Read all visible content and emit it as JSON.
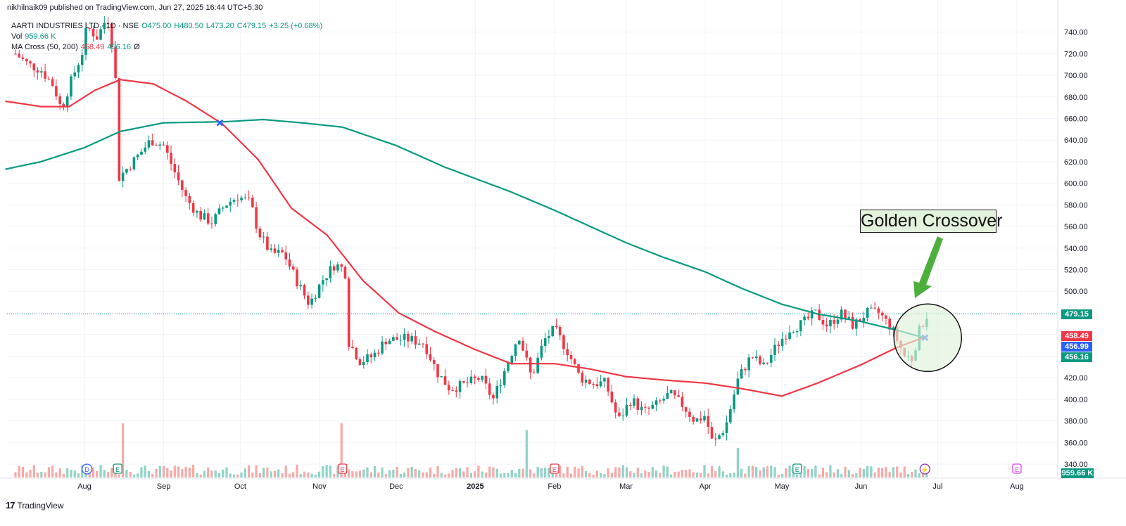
{
  "header": {
    "text": "nikhilnaik09 published on TradingView.com, Jun 27, 2025 16:44 UTC+5:30"
  },
  "legend": {
    "symbol": "AARTI INDUSTRIES LTD · 1D · NSE",
    "open": "O475.00",
    "high": "H480.50",
    "low": "L473.20",
    "close": "C479.15",
    "change": "+3.25 (+0.68%)",
    "vol_label": "Vol",
    "vol_value": "959.66 K",
    "ma_label": "MA Cross (50, 200)",
    "ma_fast": "458.49",
    "ma_slow": "456.16",
    "ma_extra": "Ø"
  },
  "annotation": {
    "label": "Golden Crossover"
  },
  "price_tags": {
    "last": "479.15",
    "ma50": "458.49",
    "crossover": "456.99",
    "ma200": "456.16",
    "volume": "959.66 K"
  },
  "footer": {
    "brand": "TradingView"
  },
  "colors": {
    "up": "#089981",
    "down": "#f23645",
    "ma50": "#f23645",
    "ma200": "#089981",
    "vol_up": "#8fd3c7",
    "vol_down": "#f7a9a7",
    "grid": "#f0f3fa",
    "cross": "#2962ff",
    "arrow": "#4caf3c"
  },
  "chart_data": {
    "type": "candlestick",
    "title": "AARTI INDUSTRIES LTD · 1D · NSE",
    "y_ticks": [
      340,
      360,
      380,
      400,
      420,
      440,
      460,
      480,
      500,
      520,
      540,
      560,
      580,
      600,
      620,
      640,
      660,
      680,
      700,
      720,
      740
    ],
    "ylim": [
      336,
      748
    ],
    "x_ticks": [
      {
        "label": "Aug",
        "date": "2024-08-01"
      },
      {
        "label": "Sep",
        "date": "2024-09-01"
      },
      {
        "label": "Oct",
        "date": "2024-10-01"
      },
      {
        "label": "Nov",
        "date": "2024-11-01"
      },
      {
        "label": "Dec",
        "date": "2024-12-01"
      },
      {
        "label": "2025",
        "date": "2025-01-01"
      },
      {
        "label": "Feb",
        "date": "2025-02-01"
      },
      {
        "label": "Mar",
        "date": "2025-03-01"
      },
      {
        "label": "Apr",
        "date": "2025-04-01"
      },
      {
        "label": "May",
        "date": "2025-05-01"
      },
      {
        "label": "Jun",
        "date": "2025-06-01"
      },
      {
        "label": "Jul",
        "date": "2025-07-01"
      },
      {
        "label": "Aug",
        "date": "2025-08-01"
      }
    ],
    "price_path": [
      [
        "2024-07-05",
        720
      ],
      [
        "2024-07-10",
        710
      ],
      [
        "2024-07-15",
        705
      ],
      [
        "2024-07-20",
        690
      ],
      [
        "2024-07-23",
        668
      ],
      [
        "2024-07-26",
        690
      ],
      [
        "2024-07-31",
        720
      ],
      [
        "2024-08-02",
        745
      ],
      [
        "2024-08-06",
        735
      ],
      [
        "2024-08-10",
        755
      ],
      [
        "2024-08-13",
        712
      ],
      [
        "2024-08-14",
        604
      ],
      [
        "2024-08-20",
        620
      ],
      [
        "2024-08-27",
        640
      ],
      [
        "2024-09-01",
        635
      ],
      [
        "2024-09-05",
        612
      ],
      [
        "2024-09-10",
        585
      ],
      [
        "2024-09-15",
        570
      ],
      [
        "2024-09-20",
        564
      ],
      [
        "2024-09-25",
        580
      ],
      [
        "2024-09-30",
        588
      ],
      [
        "2024-10-05",
        582
      ],
      [
        "2024-10-08",
        555
      ],
      [
        "2024-10-13",
        535
      ],
      [
        "2024-10-18",
        535
      ],
      [
        "2024-10-23",
        510
      ],
      [
        "2024-10-28",
        488
      ],
      [
        "2024-11-02",
        510
      ],
      [
        "2024-11-07",
        525
      ],
      [
        "2024-11-11",
        520
      ],
      [
        "2024-11-12",
        455
      ],
      [
        "2024-11-17",
        435
      ],
      [
        "2024-11-22",
        440
      ],
      [
        "2024-11-27",
        455
      ],
      [
        "2024-12-05",
        456
      ],
      [
        "2024-12-12",
        452
      ],
      [
        "2024-12-17",
        425
      ],
      [
        "2024-12-22",
        410
      ],
      [
        "2024-12-27",
        413
      ],
      [
        "2025-01-03",
        420
      ],
      [
        "2025-01-08",
        400
      ],
      [
        "2025-01-13",
        430
      ],
      [
        "2025-01-18",
        460
      ],
      [
        "2025-01-23",
        420
      ],
      [
        "2025-01-28",
        455
      ],
      [
        "2025-02-01",
        465
      ],
      [
        "2025-02-06",
        445
      ],
      [
        "2025-02-11",
        420
      ],
      [
        "2025-02-16",
        415
      ],
      [
        "2025-02-21",
        415
      ],
      [
        "2025-02-26",
        380
      ],
      [
        "2025-03-03",
        400
      ],
      [
        "2025-03-08",
        388
      ],
      [
        "2025-03-13",
        395
      ],
      [
        "2025-03-18",
        405
      ],
      [
        "2025-03-23",
        395
      ],
      [
        "2025-03-28",
        380
      ],
      [
        "2025-04-01",
        385
      ],
      [
        "2025-04-04",
        358
      ],
      [
        "2025-04-09",
        375
      ],
      [
        "2025-04-14",
        420
      ],
      [
        "2025-04-19",
        440
      ],
      [
        "2025-04-24",
        430
      ],
      [
        "2025-04-29",
        450
      ],
      [
        "2025-05-04",
        465
      ],
      [
        "2025-05-09",
        470
      ],
      [
        "2025-05-14",
        480
      ],
      [
        "2025-05-19",
        468
      ],
      [
        "2025-05-24",
        480
      ],
      [
        "2025-05-29",
        468
      ],
      [
        "2025-06-03",
        480
      ],
      [
        "2025-06-08",
        480
      ],
      [
        "2025-06-13",
        466
      ],
      [
        "2025-06-18",
        440
      ],
      [
        "2025-06-21",
        438
      ],
      [
        "2025-06-24",
        465
      ],
      [
        "2025-06-27",
        479
      ]
    ],
    "series": [
      {
        "name": "MA 50",
        "values": [
          [
            "2024-07-01",
            676
          ],
          [
            "2024-07-15",
            671
          ],
          [
            "2024-07-26",
            671
          ],
          [
            "2024-08-05",
            686
          ],
          [
            "2024-08-15",
            696
          ],
          [
            "2024-08-28",
            692
          ],
          [
            "2024-09-10",
            676
          ],
          [
            "2024-09-24",
            655
          ],
          [
            "2024-10-08",
            622
          ],
          [
            "2024-10-21",
            577
          ],
          [
            "2024-11-04",
            552
          ],
          [
            "2024-11-18",
            510
          ],
          [
            "2024-12-02",
            480
          ],
          [
            "2024-12-16",
            463
          ],
          [
            "2025-01-01",
            446
          ],
          [
            "2025-01-15",
            433
          ],
          [
            "2025-02-01",
            433
          ],
          [
            "2025-02-15",
            428
          ],
          [
            "2025-03-01",
            421
          ],
          [
            "2025-03-15",
            418
          ],
          [
            "2025-04-01",
            415
          ],
          [
            "2025-04-15",
            410
          ],
          [
            "2025-05-01",
            403
          ],
          [
            "2025-05-15",
            415
          ],
          [
            "2025-06-01",
            432
          ],
          [
            "2025-06-15",
            448
          ],
          [
            "2025-06-27",
            458.49
          ]
        ]
      },
      {
        "name": "MA 200",
        "values": [
          [
            "2024-07-01",
            613
          ],
          [
            "2024-07-15",
            620
          ],
          [
            "2024-08-01",
            633
          ],
          [
            "2024-08-15",
            648
          ],
          [
            "2024-09-01",
            656
          ],
          [
            "2024-09-25",
            657
          ],
          [
            "2024-10-10",
            659
          ],
          [
            "2024-10-25",
            656
          ],
          [
            "2024-11-10",
            652
          ],
          [
            "2024-12-01",
            635
          ],
          [
            "2024-12-20",
            615
          ],
          [
            "2025-01-15",
            592
          ],
          [
            "2025-02-01",
            575
          ],
          [
            "2025-02-15",
            560
          ],
          [
            "2025-03-01",
            545
          ],
          [
            "2025-03-15",
            532
          ],
          [
            "2025-04-01",
            518
          ],
          [
            "2025-04-15",
            503
          ],
          [
            "2025-05-01",
            488
          ],
          [
            "2025-05-15",
            479
          ],
          [
            "2025-06-01",
            472
          ],
          [
            "2025-06-15",
            464
          ],
          [
            "2025-06-27",
            456.16
          ]
        ]
      }
    ],
    "crossovers": [
      {
        "date": "2024-09-23",
        "value": 656,
        "kind": "death"
      },
      {
        "date": "2025-06-26",
        "value": 456.99,
        "kind": "golden"
      }
    ],
    "events": [
      {
        "date": "2024-08-02",
        "label": "D"
      },
      {
        "date": "2024-08-14",
        "label": "E"
      },
      {
        "date": "2024-11-10",
        "label": "E"
      },
      {
        "date": "2025-02-01",
        "label": "E"
      },
      {
        "date": "2025-05-07",
        "label": "E"
      },
      {
        "date": "2025-06-26",
        "label": "⚡"
      },
      {
        "date": "2025-08-01",
        "label": "E"
      }
    ],
    "volume_spikes": [
      {
        "date": "2024-08-14",
        "relative": 1.0,
        "dir": "down"
      },
      {
        "date": "2024-08-16",
        "relative": 0.55,
        "dir": "down"
      },
      {
        "date": "2024-11-10",
        "relative": 0.55,
        "dir": "down"
      },
      {
        "date": "2024-11-12",
        "relative": 1.2,
        "dir": "down"
      },
      {
        "date": "2025-01-13",
        "relative": 0.43,
        "dir": "up"
      },
      {
        "date": "2025-01-21",
        "relative": 0.48,
        "dir": "up"
      },
      {
        "date": "2025-04-14",
        "relative": 0.3,
        "dir": "up"
      },
      {
        "date": "2025-05-09",
        "relative": 0.3,
        "dir": "up"
      }
    ]
  }
}
